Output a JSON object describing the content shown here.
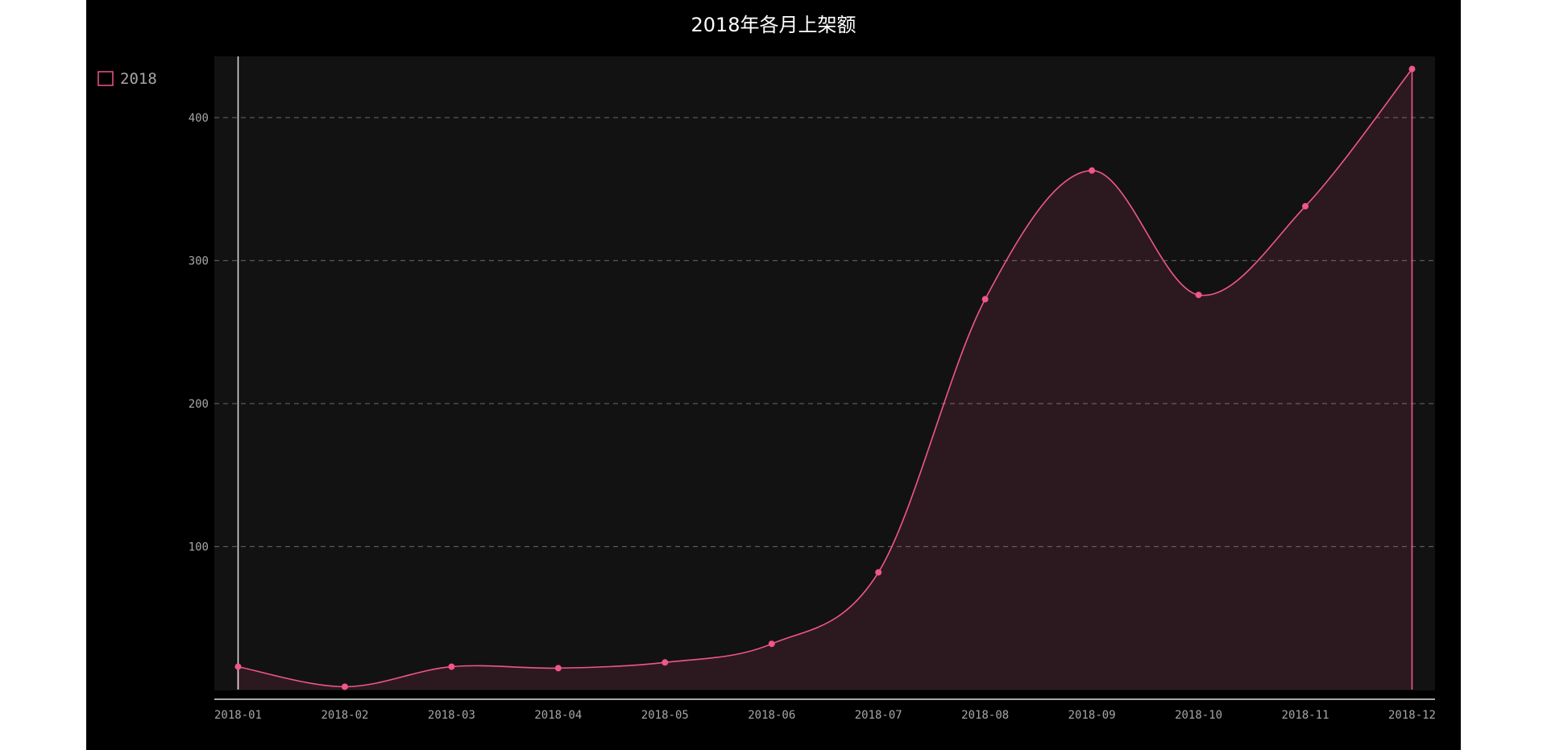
{
  "chart_data": {
    "type": "area",
    "title": "2018年各月上架额",
    "xlabel": "",
    "ylabel": "",
    "categories": [
      "2018-01",
      "2018-02",
      "2018-03",
      "2018-04",
      "2018-05",
      "2018-06",
      "2018-07",
      "2018-08",
      "2018-09",
      "2018-10",
      "2018-11",
      "2018-12"
    ],
    "series": [
      {
        "name": "2018",
        "values": [
          16,
          2,
          16,
          15,
          19,
          32,
          82,
          273,
          363,
          276,
          338,
          434
        ]
      }
    ],
    "ylim": [
      0,
      450
    ],
    "yticks": [
      100,
      200,
      300,
      400
    ],
    "grid": true,
    "grid_style": "dashed",
    "legend_position": "top-left",
    "smooth": true,
    "show_points": true,
    "colors": {
      "background": "#000000",
      "plot_background": "#121212",
      "series": "#f0568c",
      "area_fill": "rgba(240, 86, 140, 0.12)",
      "grid": "#5a5a5a",
      "axis": "#e0e0e0",
      "text": "#a6a6a6",
      "title": "#ffffff"
    }
  }
}
